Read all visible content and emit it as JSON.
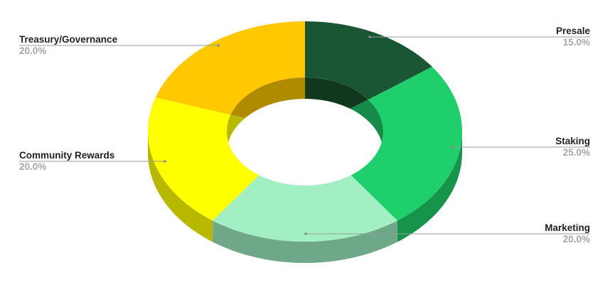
{
  "chart_data": {
    "type": "pie",
    "style": "3d-donut",
    "start": "top, clockwise",
    "slices": [
      {
        "label": "Presale",
        "value": 15.0,
        "pct_label": "15.0%",
        "color": "#1a5633",
        "side": "#10391f",
        "inner": "#12371f"
      },
      {
        "label": "Staking",
        "value": 25.0,
        "pct_label": "25.0%",
        "color": "#1fcf6b",
        "side": "#17944c",
        "inner": "#168a48"
      },
      {
        "label": "Marketing",
        "value": 20.0,
        "pct_label": "20.0%",
        "color": "#a3efc4",
        "side": "#6fa889",
        "inner": "#6fa889"
      },
      {
        "label": "Community Rewards",
        "value": 20.0,
        "pct_label": "20.0%",
        "color": "#ffff00",
        "side": "#b8b800",
        "inner": "#b8b800"
      },
      {
        "label": "Treasury/Governance",
        "value": 20.0,
        "pct_label": "20.0%",
        "color": "#ffc800",
        "side": "#b38c00",
        "inner": "#b08b00"
      }
    ],
    "legend": "callout labels"
  }
}
